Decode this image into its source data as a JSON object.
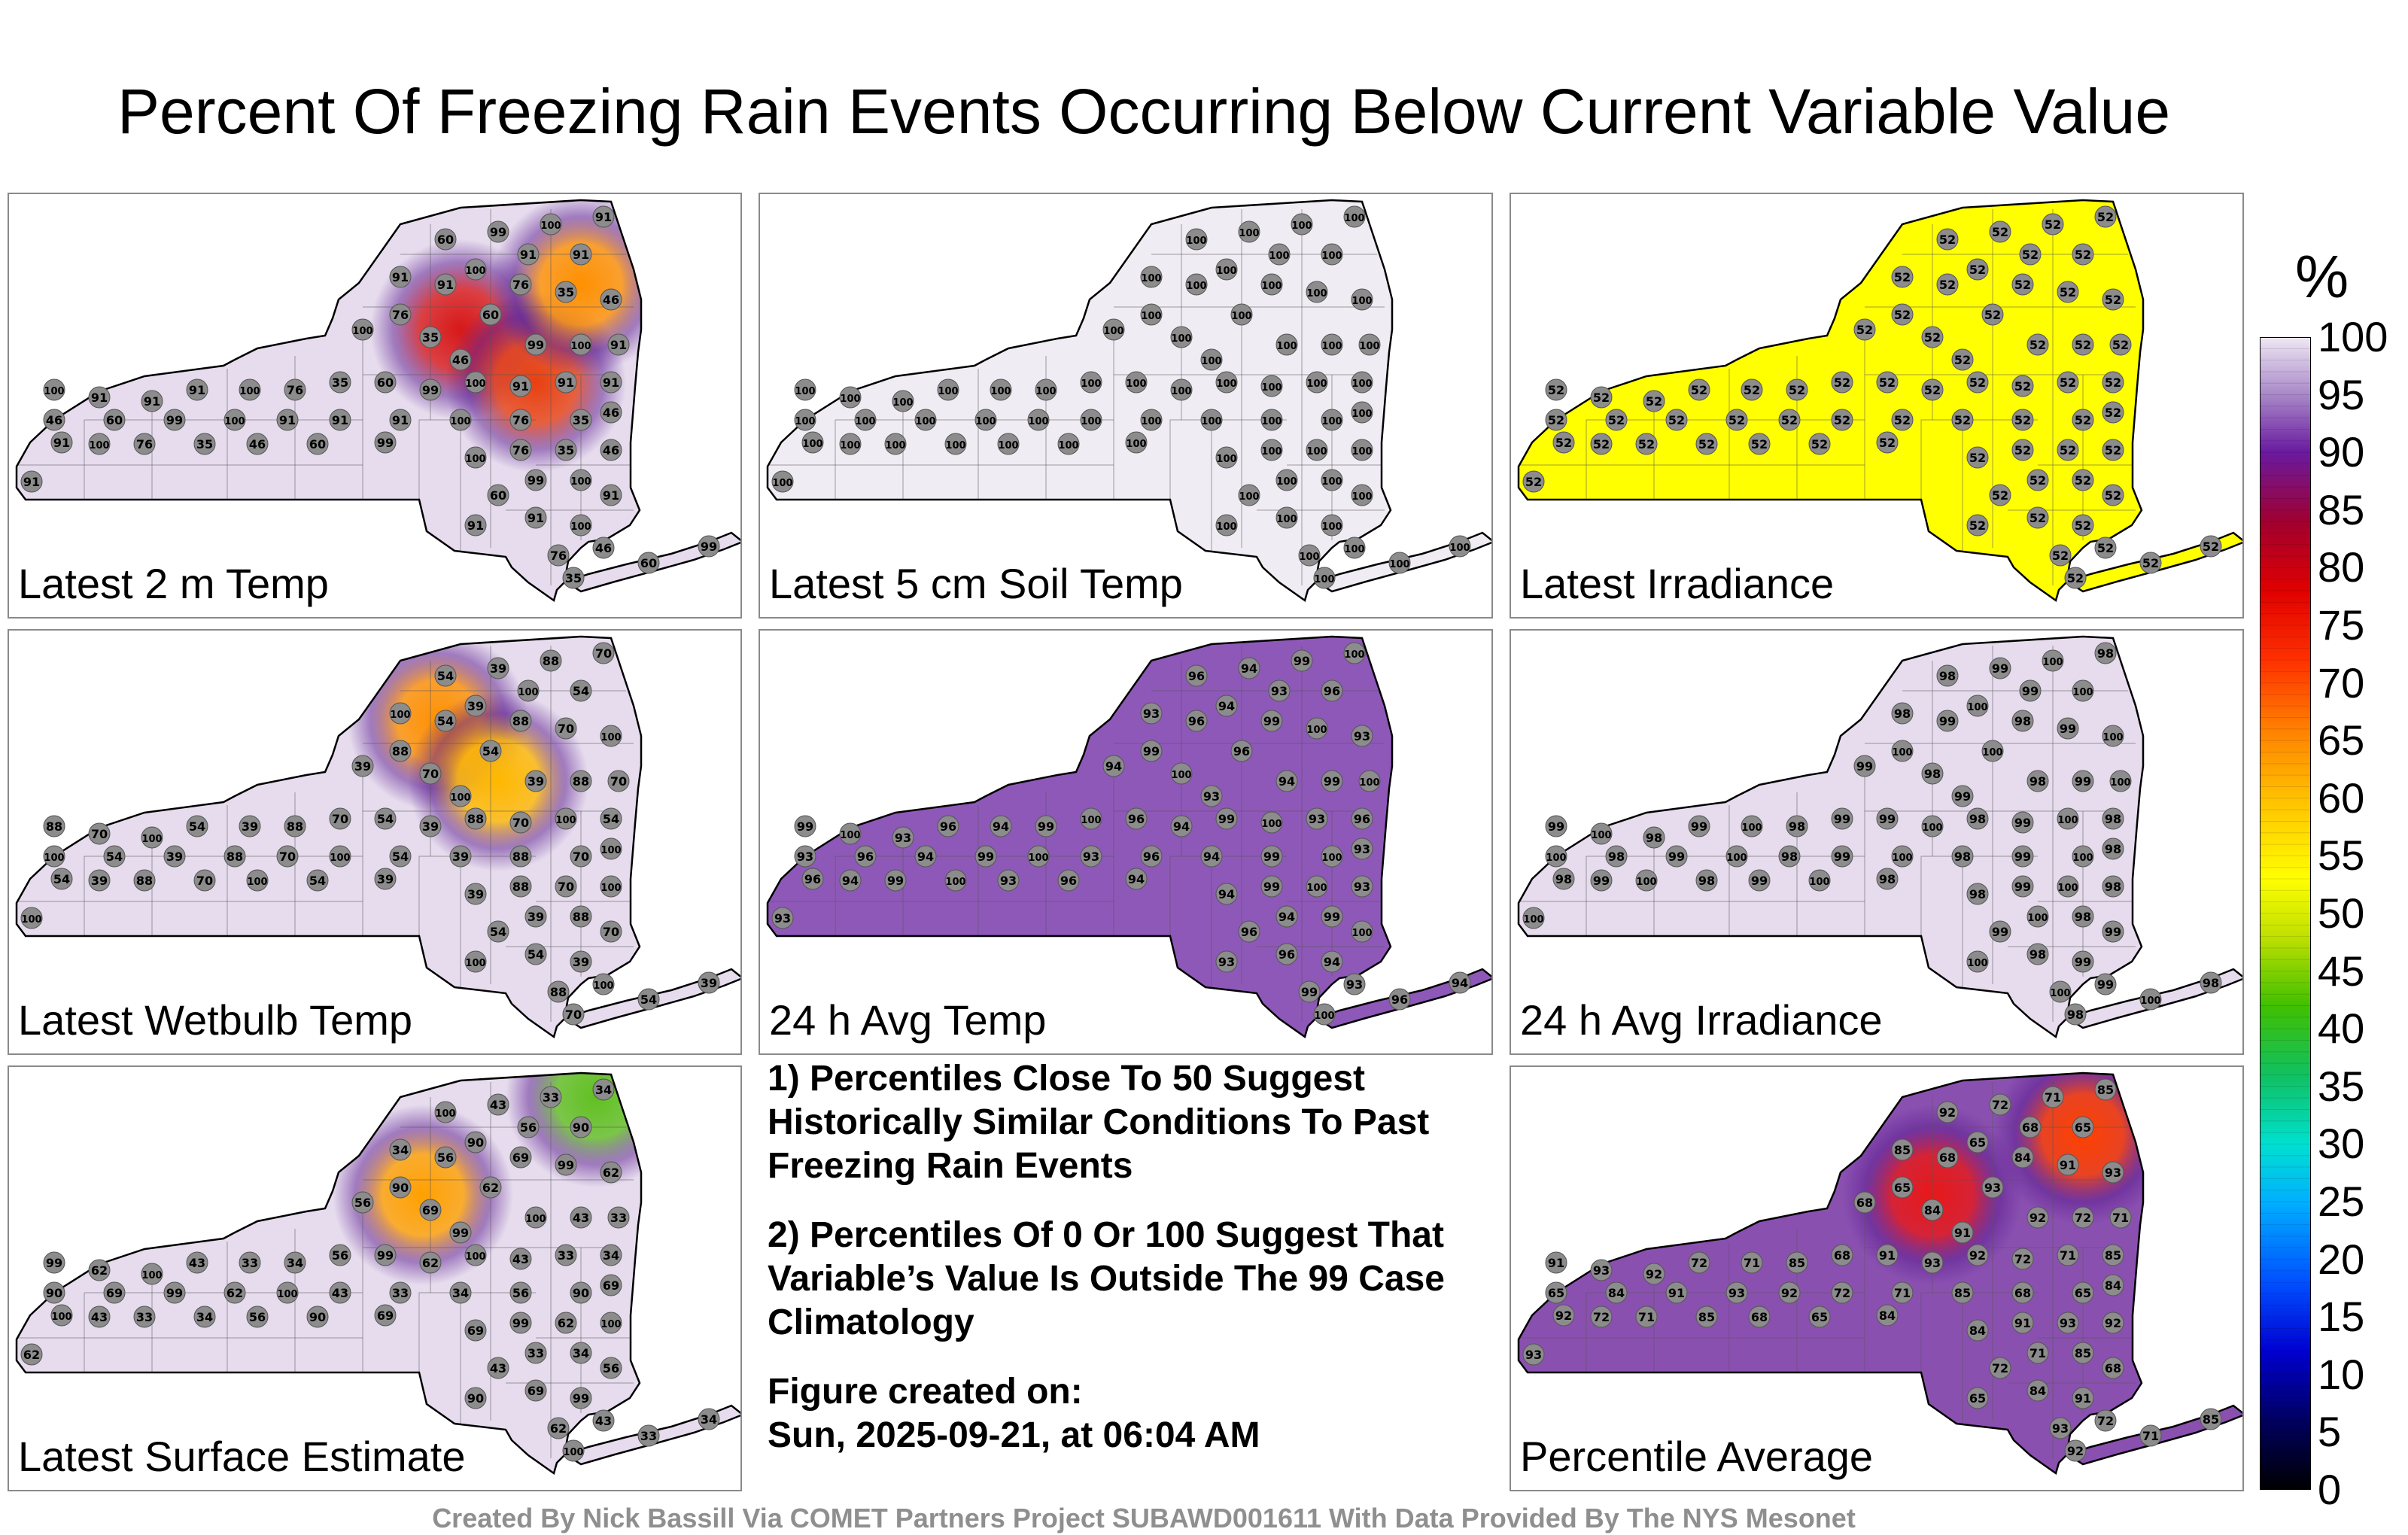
{
  "title": "Percent Of Freezing Rain Events Occurring Below Current Variable Value",
  "panels": [
    {
      "id": "p1",
      "label": "Latest 2 m Temp",
      "base": "#e6dced",
      "blobs": [
        {
          "name": "60",
          "color": "#d81818"
        },
        {
          "name": "46",
          "color": "#e84010"
        },
        {
          "name": "35",
          "color": "#ff9000"
        }
      ],
      "stations_sample": [
        "91",
        "91",
        "100",
        "76",
        "35",
        "46",
        "60",
        "99",
        "100",
        "91"
      ]
    },
    {
      "id": "p2",
      "label": "Latest 5 cm Soil Temp",
      "base": "#f0ecf4",
      "blobs": [],
      "stations_sample": [
        "100"
      ]
    },
    {
      "id": "p3",
      "label": "Latest Irradiance",
      "base": "#ffff00",
      "blobs": [],
      "stations_sample": [
        "52"
      ]
    },
    {
      "id": "p4",
      "label": "Latest Wetbulb Temp",
      "base": "#e6dced",
      "blobs": [
        {
          "name": "54",
          "color": "#ff9000"
        },
        {
          "name": "39",
          "color": "#ffb800"
        }
      ],
      "stations_sample": [
        "100",
        "54",
        "39",
        "88",
        "70"
      ]
    },
    {
      "id": "p5",
      "label": "24 h Avg Temp",
      "base": "#8e58b8",
      "blobs": [],
      "stations_sample": [
        "93",
        "96",
        "94",
        "99",
        "100"
      ]
    },
    {
      "id": "p6",
      "label": "24 h Avg Irradiance",
      "base": "#e6dced",
      "blobs": [],
      "stations_sample": [
        "100",
        "98",
        "99"
      ]
    },
    {
      "id": "p7",
      "label": "Latest Surface Estimate",
      "base": "#e6dced",
      "blobs": [
        {
          "name": "33",
          "color": "#60c020"
        },
        {
          "name": "43",
          "color": "#ffa000"
        }
      ],
      "stations_sample": [
        "62",
        "100",
        "43",
        "33",
        "34",
        "56",
        "90",
        "69",
        "99"
      ]
    },
    {
      "id": "p8",
      "label": "Percentile Average",
      "base": "#8a50b0",
      "blobs": [
        {
          "name": "72",
          "color": "#e81818"
        },
        {
          "name": "65",
          "color": "#ff4000"
        }
      ],
      "stations_sample": [
        "93",
        "92",
        "72",
        "71",
        "85",
        "68",
        "65",
        "84",
        "91"
      ]
    }
  ],
  "notes": {
    "line1": "1) Percentiles Close To 50 Suggest Historically Similar Conditions To Past Freezing Rain Events",
    "line2": "2) Percentiles Of 0 Or 100 Suggest That Variable’s Value Is Outside The 99 Case Climatology",
    "created_label": "Figure created on:",
    "created_date": "Sun, 2025-09-21, at 06:04 AM"
  },
  "footer": "Created By Nick Bassill Via COMET Partners Project SUBAWD001611 With Data Provided By The NYS Mesonet",
  "chart_data": {
    "type": "heatmap",
    "title": "Percent Of Freezing Rain Events Occurring Below Current Variable Value",
    "colorbar": {
      "label": "%",
      "min": 0,
      "max": 100,
      "ticks": [
        "100",
        "95",
        "90",
        "85",
        "80",
        "75",
        "70",
        "65",
        "60",
        "55",
        "50",
        "45",
        "40",
        "35",
        "30",
        "25",
        "20",
        "15",
        "10",
        "5",
        "0"
      ]
    },
    "panels": [
      "Latest 2 m Temp",
      "Latest 5 cm Soil Temp",
      "Latest Irradiance",
      "Latest Wetbulb Temp",
      "24 h Avg Temp",
      "24 h Avg Irradiance",
      "Latest Surface Estimate",
      "Percentile Average"
    ],
    "representative_values": {
      "Latest 2 m Temp": [
        91,
        91,
        100,
        60,
        76,
        35,
        46,
        99,
        100
      ],
      "Latest 5 cm Soil Temp": [
        100
      ],
      "Latest Irradiance": [
        52
      ],
      "Latest Wetbulb Temp": [
        100,
        54,
        39,
        88,
        70
      ],
      "24 h Avg Temp": [
        93,
        96,
        94,
        99,
        100
      ],
      "24 h Avg Irradiance": [
        100,
        98,
        99
      ],
      "Latest Surface Estimate": [
        62,
        100,
        43,
        33,
        34,
        56,
        90,
        69
      ],
      "Percentile Average": [
        93,
        92,
        72,
        71,
        85,
        68,
        65,
        84
      ]
    }
  }
}
